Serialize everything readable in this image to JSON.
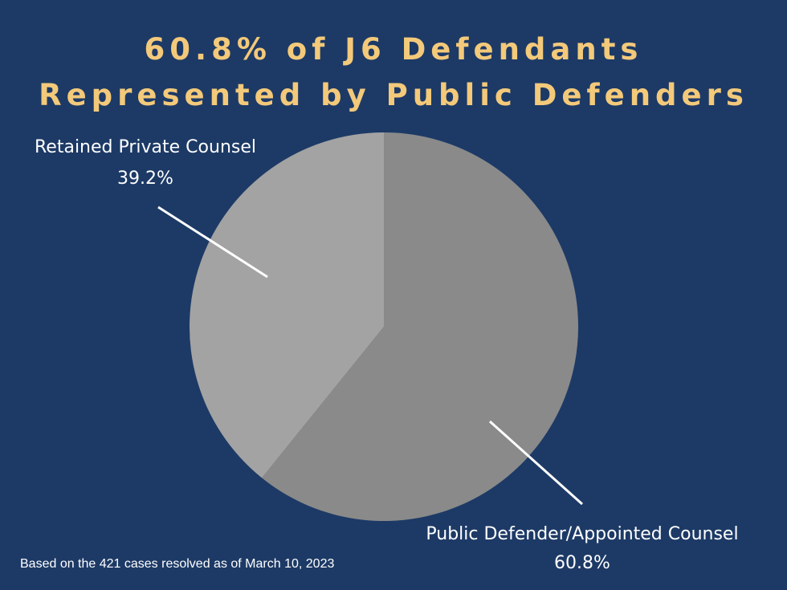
{
  "title_lines": [
    "60.8% of J6 Defendants",
    "Represented by Public Defenders"
  ],
  "footnote": "Based on the 421 cases resolved as of March 10, 2023",
  "colors": {
    "background": "#1d3a66",
    "title": "#f3c97a",
    "label_text": "#ffffff",
    "leader_line": "#ffffff"
  },
  "chart_data": {
    "type": "pie",
    "title": "60.8% of J6 Defendants Represented by Public Defenders",
    "slices": [
      {
        "label": "Public Defender/Appointed Counsel",
        "value": 60.8,
        "display": "60.8%",
        "color": "#8a8a8a"
      },
      {
        "label": "Retained Private Counsel",
        "value": 39.2,
        "display": "39.2%",
        "color": "#a3a3a3"
      }
    ],
    "start": "12 o'clock",
    "direction": "clockwise",
    "legend": "none"
  }
}
